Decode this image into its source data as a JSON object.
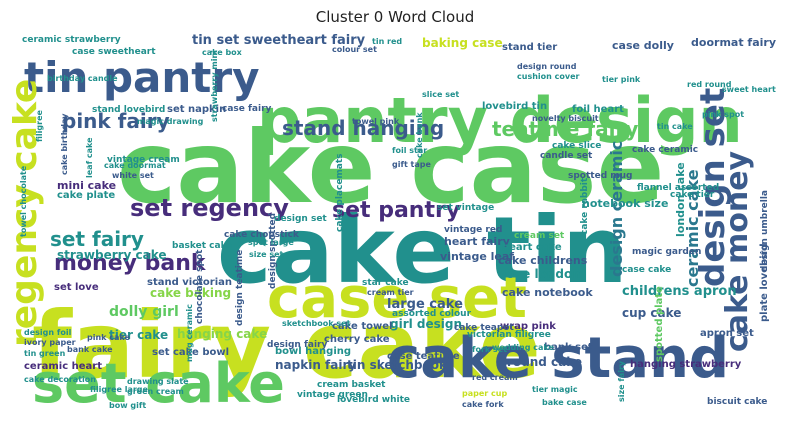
{
  "title": "Cluster 0 Word Cloud",
  "colors": {
    "dark_blue": "#3b5b8c",
    "teal": "#21908d",
    "green": "#5ec962",
    "lime": "#c7e020",
    "purple": "#472d7b",
    "light_green": "#86d549",
    "mid_teal": "#2a788e",
    "light_teal": "#35b779"
  },
  "words": [
    {
      "text": "fairy cake"
    },
    {
      "text": "cake case"
    },
    {
      "text": "cake tin"
    },
    {
      "text": "pantry design"
    },
    {
      "text": "cake stand"
    },
    {
      "text": "set cake"
    },
    {
      "text": "case set"
    },
    {
      "text": "tin pantry"
    },
    {
      "text": "regency cake"
    },
    {
      "text": "cake money"
    },
    {
      "text": "design set"
    },
    {
      "text": "money bank"
    },
    {
      "text": "set regency"
    },
    {
      "text": "teatime fairy"
    },
    {
      "text": "stand hanging"
    },
    {
      "text": "pink fairy"
    },
    {
      "text": "set pantry"
    },
    {
      "text": "set fairy"
    },
    {
      "text": "ceramic cake"
    },
    {
      "text": "design ceramic"
    },
    {
      "text": "tin set sweetheart fairy"
    },
    {
      "text": "ceramic strawberry"
    },
    {
      "text": "case sweetheart"
    },
    {
      "text": "baking case"
    },
    {
      "text": "stand tier"
    },
    {
      "text": "case dolly"
    },
    {
      "text": "doormat fairy"
    },
    {
      "text": "set napkin"
    },
    {
      "text": "stand lovebird"
    },
    {
      "text": "case fairy"
    },
    {
      "text": "vintage cream"
    },
    {
      "text": "strawberry cake"
    },
    {
      "text": "mini cake"
    },
    {
      "text": "cake plate"
    },
    {
      "text": "set love"
    },
    {
      "text": "stand victorian"
    },
    {
      "text": "cake baking"
    },
    {
      "text": "dolly girl"
    },
    {
      "text": "tier cake"
    },
    {
      "text": "hanging cake"
    },
    {
      "text": "ceramic heart"
    },
    {
      "text": "set cake bowl"
    },
    {
      "text": "napkin fairy"
    },
    {
      "text": "tin sketchbook"
    },
    {
      "text": "case teatime"
    },
    {
      "text": "round cake"
    },
    {
      "text": "hanging strawberry"
    },
    {
      "text": "large cake"
    },
    {
      "text": "girl design"
    },
    {
      "text": "heart fairy"
    },
    {
      "text": "vintage leaf"
    },
    {
      "text": "cake childrens"
    },
    {
      "text": "love london"
    },
    {
      "text": "cake notebook"
    },
    {
      "text": "childrens apron"
    },
    {
      "text": "design umbrella"
    },
    {
      "text": "london cake"
    },
    {
      "text": "notebook size"
    },
    {
      "text": "heart cake"
    },
    {
      "text": "cream set"
    },
    {
      "text": "cake ceramic"
    },
    {
      "text": "spotted mug"
    },
    {
      "text": "flannel assorted"
    },
    {
      "text": "cake slice"
    },
    {
      "text": "candle set"
    },
    {
      "text": "foil heart"
    },
    {
      "text": "lovebird tin"
    },
    {
      "text": "cake chopstick"
    },
    {
      "text": "basket cake"
    },
    {
      "text": "design spotted"
    },
    {
      "text": "chocolate spot"
    },
    {
      "text": "design teatime"
    },
    {
      "text": "bowl hanging"
    },
    {
      "text": "cherry cake"
    },
    {
      "text": "cake towel"
    },
    {
      "text": "sketchbook set"
    },
    {
      "text": "lovebird white"
    },
    {
      "text": "cream basket"
    },
    {
      "text": "vintage green"
    },
    {
      "text": "wrap pink"
    },
    {
      "text": "cup cake"
    },
    {
      "text": "apron set"
    },
    {
      "text": "plate lovebird"
    },
    {
      "text": "biscuit cake"
    },
    {
      "text": "tin green"
    },
    {
      "text": "ivory paper"
    },
    {
      "text": "pink cake"
    },
    {
      "text": "green cream"
    },
    {
      "text": "bow gift"
    },
    {
      "text": "red cream"
    },
    {
      "text": "tier magic"
    },
    {
      "text": "bake case"
    },
    {
      "text": "paper cup"
    },
    {
      "text": "cake fork"
    },
    {
      "text": "design round"
    },
    {
      "text": "cushion cover"
    },
    {
      "text": "tier pink"
    },
    {
      "text": "pink spot"
    },
    {
      "text": "tin cake"
    },
    {
      "text": "red round"
    },
    {
      "text": "sweet heart"
    },
    {
      "text": "novelty biscuit"
    },
    {
      "text": "towel pink"
    },
    {
      "text": "foil star"
    },
    {
      "text": "gift tape"
    },
    {
      "text": "cake birthday"
    },
    {
      "text": "leaf cake"
    },
    {
      "text": "white set"
    },
    {
      "text": "cake doormat"
    },
    {
      "text": "towel chocolate"
    },
    {
      "text": "filigree"
    },
    {
      "text": "tin red"
    },
    {
      "text": "colour set"
    },
    {
      "text": "cake box"
    },
    {
      "text": "birthday candle"
    },
    {
      "text": "magic drawing"
    },
    {
      "text": "strawberry mini"
    },
    {
      "text": "cake bank"
    },
    {
      "text": "assorted colour"
    },
    {
      "text": "victorian filigree"
    },
    {
      "text": "cake teapot"
    },
    {
      "text": "bank set"
    },
    {
      "text": "cake rabbit"
    },
    {
      "text": "magic garden"
    },
    {
      "text": "vintage red"
    },
    {
      "text": "design fairy"
    },
    {
      "text": "set vintage"
    },
    {
      "text": "cake placemats"
    },
    {
      "text": "star cake"
    },
    {
      "text": "cream tier"
    },
    {
      "text": "wedding cake"
    },
    {
      "text": "spotted plate"
    },
    {
      "text": "size fairy"
    },
    {
      "text": "drawing slate"
    },
    {
      "text": "filigree large"
    },
    {
      "text": "cake decoration"
    },
    {
      "text": "bank cake"
    },
    {
      "text": "design foil"
    },
    {
      "text": "cake tier"
    },
    {
      "text": "mug ceramic"
    },
    {
      "text": "fork set"
    },
    {
      "text": "spot large"
    },
    {
      "text": "size set"
    },
    {
      "text": "slice set"
    },
    {
      "text": "design set"
    },
    {
      "text": "case cake"
    }
  ]
}
